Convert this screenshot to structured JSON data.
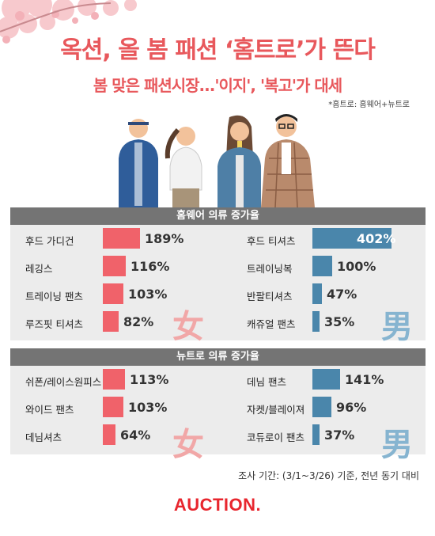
{
  "header": {
    "title": "옥션, 올 봄 패션 ‘홈트로’가 뜬다",
    "subtitle": "봄 맞은 패션시장...'이지', '복고'가 대세",
    "footnote": "*홈트로: 홈웨어+뉴트로"
  },
  "colors": {
    "female": "#f0626a",
    "male": "#4a86ab",
    "accent": "#e8585c"
  },
  "chart_data": [
    {
      "type": "bar",
      "title": "홈웨어 의류 증가율",
      "unit": "%",
      "series": [
        {
          "gender": "女",
          "categories": [
            "후드 가디건",
            "레깅스",
            "트레이닝 팬츠",
            "루즈핏 티셔츠"
          ],
          "values": [
            189,
            116,
            103,
            82
          ]
        },
        {
          "gender": "男",
          "categories": [
            "후드 티셔츠",
            "트레이닝복",
            "반팔티셔츠",
            "캐쥬얼 팬츠"
          ],
          "values": [
            402,
            100,
            47,
            35
          ]
        }
      ]
    },
    {
      "type": "bar",
      "title": "뉴트로 의류 증가율",
      "unit": "%",
      "series": [
        {
          "gender": "女",
          "categories": [
            "쉬폰/레이스원피스",
            "와이드 팬츠",
            "데님셔츠"
          ],
          "values": [
            113,
            103,
            64
          ]
        },
        {
          "gender": "男",
          "categories": [
            "데님 팬츠",
            "자켓/블레이져",
            "코듀로이 팬츠"
          ],
          "values": [
            141,
            96,
            37
          ]
        }
      ]
    }
  ],
  "footer": {
    "period": "조사 기간: (3/1~3/26) 기준, 전년 동기 대비",
    "logo": "AUCTION."
  }
}
